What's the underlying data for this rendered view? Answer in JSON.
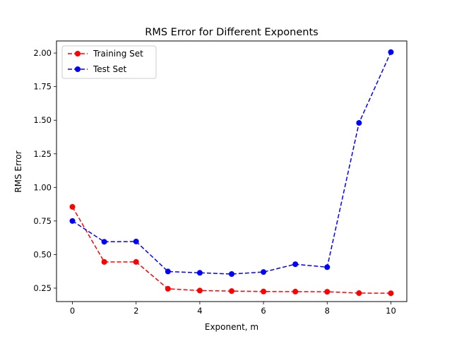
{
  "chart_data": {
    "type": "line",
    "title": "RMS Error for Different Exponents",
    "xlabel": "Exponent, m",
    "ylabel": "RMS Error",
    "x": [
      0,
      1,
      2,
      3,
      4,
      5,
      6,
      7,
      8,
      9,
      10
    ],
    "xlim": [
      -0.5,
      10.5
    ],
    "ylim": [
      0.15,
      2.09
    ],
    "xticks": [
      0,
      2,
      4,
      6,
      8,
      10
    ],
    "xtick_labels": [
      "0",
      "2",
      "4",
      "6",
      "8",
      "10"
    ],
    "yticks": [
      0.25,
      0.5,
      0.75,
      1.0,
      1.25,
      1.5,
      1.75,
      2.0
    ],
    "ytick_labels": [
      "0.25",
      "0.50",
      "0.75",
      "1.00",
      "1.25",
      "1.50",
      "1.75",
      "2.00"
    ],
    "grid": false,
    "legend_position": "upper-left",
    "series": [
      {
        "name": "Training Set",
        "color": "#ff0000",
        "line_style": "dashed",
        "marker": "circle",
        "values": [
          0.855,
          0.445,
          0.445,
          0.245,
          0.232,
          0.228,
          0.225,
          0.224,
          0.223,
          0.213,
          0.212
        ]
      },
      {
        "name": "Test Set",
        "color": "#0000ff",
        "line_style": "dashed",
        "marker": "circle",
        "values": [
          0.75,
          0.595,
          0.597,
          0.374,
          0.364,
          0.355,
          0.37,
          0.428,
          0.406,
          1.48,
          2.007
        ]
      }
    ]
  }
}
